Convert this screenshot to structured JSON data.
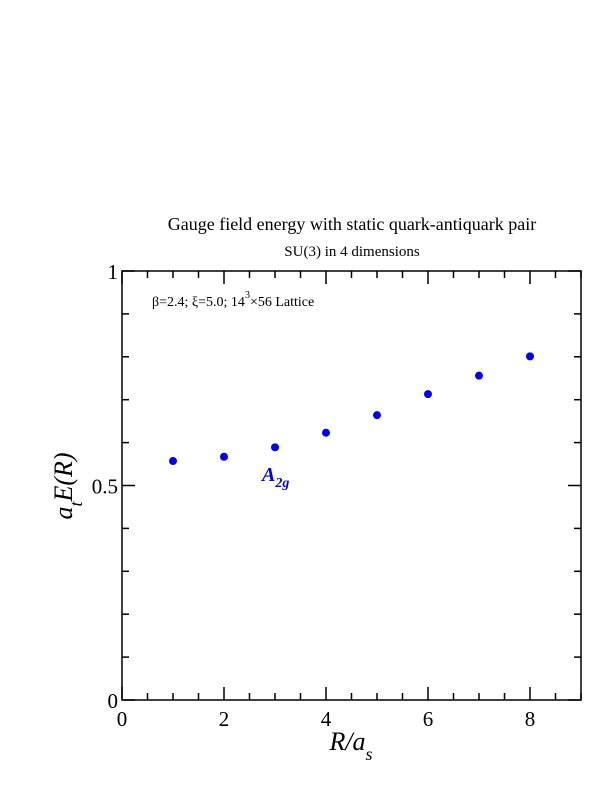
{
  "chart_data": {
    "type": "scatter",
    "title": "Gauge field energy with static quark-antiquark pair",
    "subtitle": "SU(3) in 4 dimensions",
    "annotation": {
      "text_a": "β=2.4;  ξ=5.0;  14",
      "text_sup": "3",
      "text_b": "×56 Lattice"
    },
    "xlabel": {
      "main": "R/a",
      "sub": "s"
    },
    "ylabel": {
      "a": "a",
      "sub": "t",
      "rest": "E(R)"
    },
    "xlim": [
      0,
      9
    ],
    "ylim": [
      0,
      1
    ],
    "x_ticks": [
      0,
      2,
      4,
      6,
      8
    ],
    "x_tick_labels": [
      "0",
      "2",
      "4",
      "6",
      "8"
    ],
    "y_ticks": [
      0,
      0.5,
      1
    ],
    "y_tick_labels": [
      "0",
      "0.5",
      "1"
    ],
    "x_minor_step": 0.5,
    "y_minor_step": 0.1,
    "grid": false,
    "series": [
      {
        "name": "A2g",
        "label_main": "A",
        "label_sub": "2g",
        "color": "#0000ee",
        "x": [
          1,
          2,
          3,
          4,
          5,
          6,
          7,
          8
        ],
        "y": [
          0.557,
          0.567,
          0.589,
          0.623,
          0.664,
          0.713,
          0.756,
          0.801
        ]
      }
    ]
  }
}
